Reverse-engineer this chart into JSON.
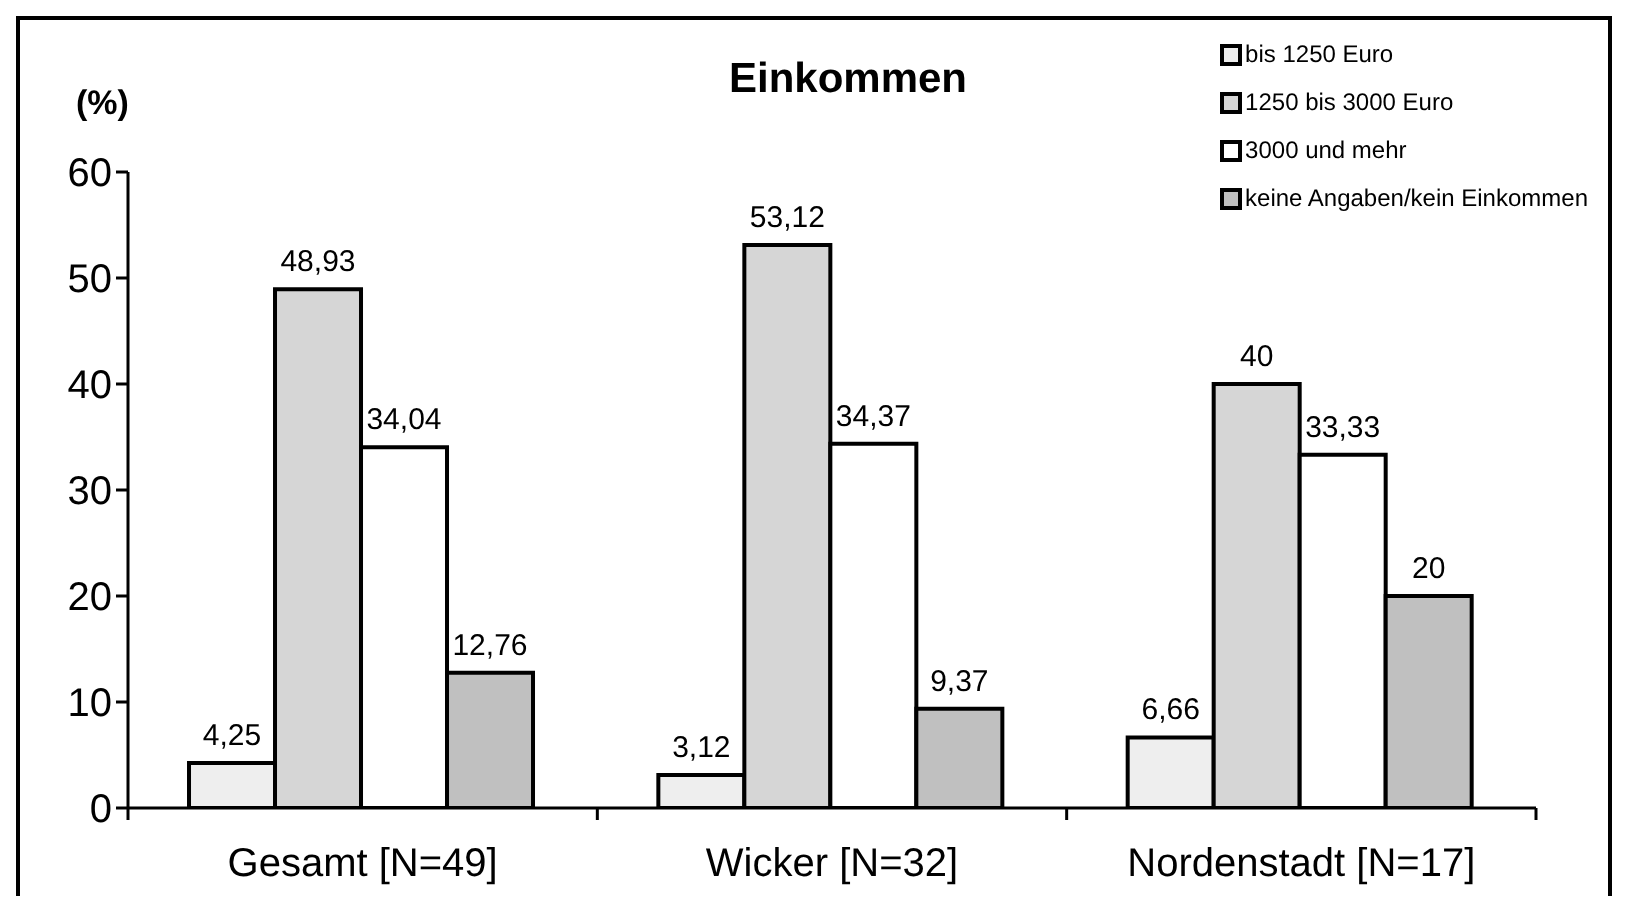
{
  "chart_data": {
    "type": "bar",
    "title": "Einkommen",
    "ylabel": "(%)",
    "categories": [
      "Gesamt [N=49]",
      "Wicker [N=32]",
      "Nordenstadt [N=17]"
    ],
    "series": [
      {
        "name": "bis 1250 Euro",
        "color": "#eeeeee",
        "values": [
          4.25,
          3.12,
          6.66
        ],
        "value_labels": [
          "4,25",
          "3,12",
          "6,66"
        ]
      },
      {
        "name": "1250 bis 3000 Euro",
        "color": "#d6d6d6",
        "values": [
          48.93,
          53.12,
          40
        ],
        "value_labels": [
          "48,93",
          "53,12",
          "40"
        ]
      },
      {
        "name": "3000 und mehr",
        "color": "#ffffff",
        "values": [
          34.04,
          34.37,
          33.33
        ],
        "value_labels": [
          "34,04",
          "34,37",
          "33,33"
        ]
      },
      {
        "name": "keine Angaben/kein Einkommen",
        "color": "#c0c0c0",
        "values": [
          12.76,
          9.37,
          20
        ],
        "value_labels": [
          "12,76",
          "9,37",
          "20"
        ]
      }
    ],
    "ylim": [
      0,
      60
    ],
    "yticks": [
      0,
      10,
      20,
      30,
      40,
      50,
      60
    ],
    "legend": "top right"
  }
}
